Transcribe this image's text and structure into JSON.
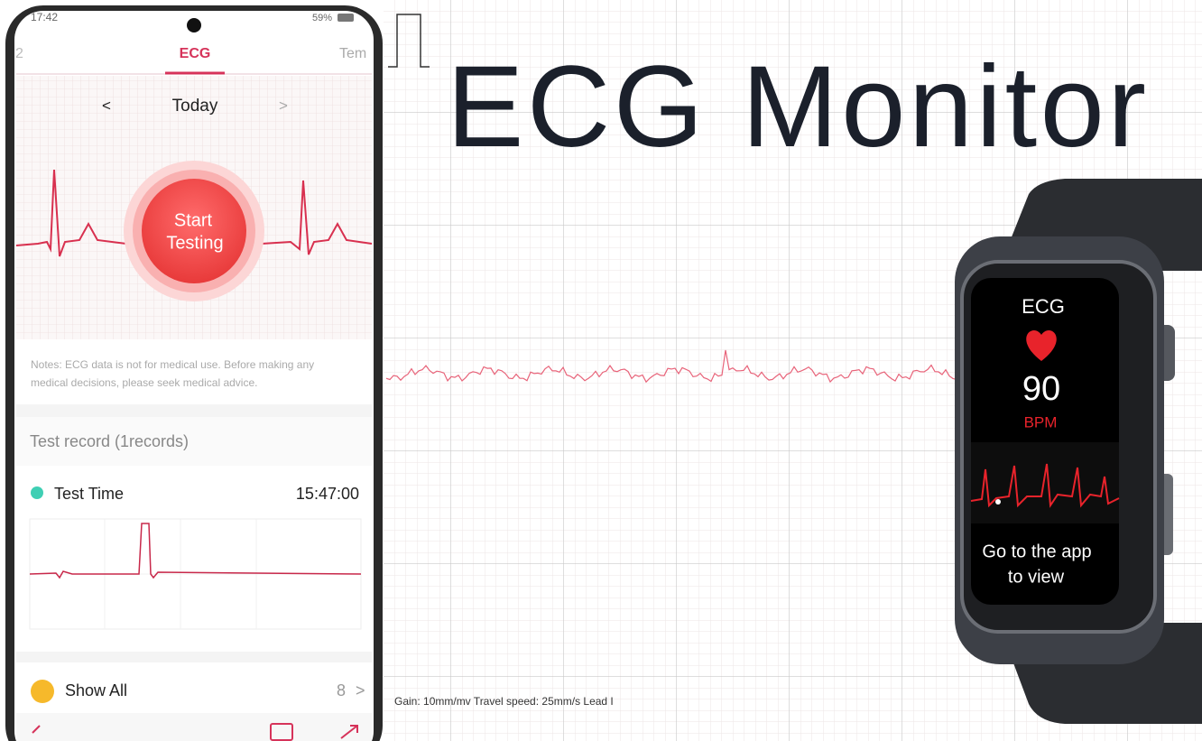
{
  "phone": {
    "status_time": "17:42",
    "battery": "59%",
    "tabs": [
      "2",
      "ECG",
      "Tem"
    ],
    "date_nav": {
      "prev": "<",
      "label": "Today",
      "next": ">"
    },
    "start_button": [
      "Start",
      "Testing"
    ],
    "notes": [
      "Notes: ECG data is not for medical use. Before making any",
      "medical decisions, please seek medical advice."
    ],
    "record_header": "Test record (1records)",
    "record": {
      "label": "Test Time",
      "time": "15:47:00"
    },
    "show_all": {
      "label": "Show All",
      "count": "8",
      "arrow": ">"
    }
  },
  "poster": {
    "title": "ECG Monitor",
    "caption": "Gain: 10mm/mv Travel speed: 25mm/s Lead I"
  },
  "watch": {
    "title": "ECG",
    "heart_rate": "90",
    "unit": "BPM",
    "message": [
      "Go to the app",
      "to view"
    ]
  }
}
